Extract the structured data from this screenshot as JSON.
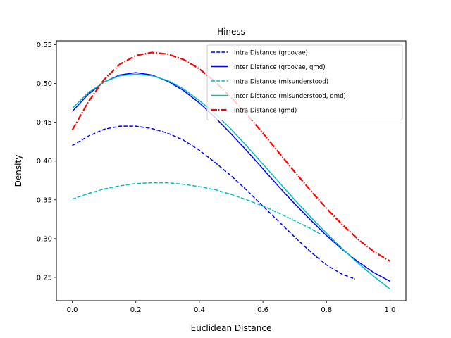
{
  "chart_data": {
    "type": "line",
    "title": "Hiness",
    "xlabel": "Euclidean Distance",
    "ylabel": "Density",
    "xlim": [
      -0.05,
      1.05
    ],
    "ylim": [
      0.22,
      0.555
    ],
    "xticks": [
      0.0,
      0.2,
      0.4,
      0.6,
      0.8,
      1.0
    ],
    "xtick_labels": [
      "0.0",
      "0.2",
      "0.4",
      "0.6",
      "0.8",
      "1.0"
    ],
    "yticks": [
      0.25,
      0.3,
      0.35,
      0.4,
      0.45,
      0.5,
      0.55
    ],
    "ytick_labels": [
      "0.25",
      "0.30",
      "0.35",
      "0.40",
      "0.45",
      "0.50",
      "0.55"
    ],
    "grid": false,
    "legend_position": "top-right",
    "series": [
      {
        "name": "Intra Distance (groovae)",
        "color": "#0000ff",
        "style": "dashed",
        "x": [
          0.0,
          0.05,
          0.1,
          0.15,
          0.2,
          0.25,
          0.3,
          0.35,
          0.4,
          0.45,
          0.5,
          0.55,
          0.6,
          0.65,
          0.7,
          0.75,
          0.8,
          0.85,
          0.89
        ],
        "y": [
          0.42,
          0.432,
          0.441,
          0.445,
          0.445,
          0.442,
          0.436,
          0.427,
          0.414,
          0.398,
          0.381,
          0.362,
          0.342,
          0.322,
          0.302,
          0.283,
          0.266,
          0.254,
          0.248
        ]
      },
      {
        "name": "Inter Distance (groovae, gmd)",
        "color": "#0000ff",
        "style": "solid",
        "x": [
          0.0,
          0.05,
          0.1,
          0.15,
          0.2,
          0.25,
          0.3,
          0.35,
          0.4,
          0.45,
          0.5,
          0.55,
          0.6,
          0.65,
          0.7,
          0.75,
          0.8,
          0.85,
          0.9,
          0.95,
          1.0
        ],
        "y": [
          0.464,
          0.486,
          0.502,
          0.511,
          0.514,
          0.511,
          0.503,
          0.491,
          0.475,
          0.456,
          0.435,
          0.413,
          0.39,
          0.367,
          0.345,
          0.324,
          0.304,
          0.286,
          0.27,
          0.256,
          0.245
        ]
      },
      {
        "name": "Intra Distance (misunderstood)",
        "color": "#00bfbf",
        "style": "dashed",
        "x": [
          0.0,
          0.05,
          0.1,
          0.15,
          0.2,
          0.25,
          0.3,
          0.35,
          0.4,
          0.45,
          0.5,
          0.55,
          0.6,
          0.65,
          0.7,
          0.75,
          0.78
        ],
        "y": [
          0.351,
          0.358,
          0.364,
          0.368,
          0.371,
          0.372,
          0.372,
          0.37,
          0.367,
          0.363,
          0.357,
          0.35,
          0.342,
          0.333,
          0.323,
          0.313,
          0.306
        ]
      },
      {
        "name": "Inter Distance (misunderstood, gmd)",
        "color": "#00bfbf",
        "style": "solid",
        "x": [
          0.0,
          0.05,
          0.1,
          0.15,
          0.2,
          0.25,
          0.3,
          0.35,
          0.4,
          0.45,
          0.5,
          0.55,
          0.6,
          0.65,
          0.7,
          0.75,
          0.8,
          0.85,
          0.9,
          0.95,
          1.0
        ],
        "y": [
          0.468,
          0.488,
          0.502,
          0.51,
          0.512,
          0.51,
          0.504,
          0.493,
          0.478,
          0.461,
          0.441,
          0.419,
          0.396,
          0.373,
          0.35,
          0.328,
          0.307,
          0.287,
          0.268,
          0.251,
          0.235
        ]
      },
      {
        "name": "Intra Distance (gmd)",
        "color": "#ff0000",
        "style": "dashdot",
        "x": [
          0.0,
          0.05,
          0.1,
          0.15,
          0.2,
          0.25,
          0.3,
          0.35,
          0.4,
          0.45,
          0.5,
          0.55,
          0.6,
          0.65,
          0.7,
          0.75,
          0.8,
          0.85,
          0.9,
          0.95,
          1.0
        ],
        "y": [
          0.44,
          0.476,
          0.505,
          0.525,
          0.536,
          0.54,
          0.538,
          0.531,
          0.519,
          0.502,
          0.482,
          0.46,
          0.436,
          0.411,
          0.386,
          0.362,
          0.339,
          0.318,
          0.299,
          0.283,
          0.271
        ]
      }
    ]
  }
}
